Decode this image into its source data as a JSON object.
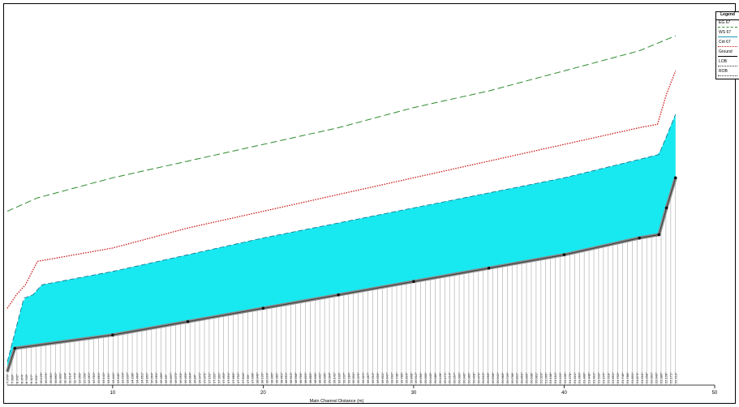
{
  "chart_data": {
    "type": "area",
    "title": "",
    "xlabel": "Main Channel Distance (m)",
    "ylabel": "",
    "xlim": [
      3,
      50
    ],
    "ylim": [
      6.5,
      17.8
    ],
    "x_ticks": [
      10,
      20,
      30,
      40,
      50
    ],
    "grid": false,
    "legend": {
      "position": "top-right",
      "title": "Legend",
      "entries": [
        "EG 67",
        "WS 67",
        "Crit 67",
        "Ground",
        "LOB",
        "ROB"
      ]
    },
    "series": [
      {
        "name": "EG 67",
        "color": "#2e8b2e",
        "style": "dashed",
        "x": [
          3,
          5,
          10,
          15,
          20,
          25,
          30,
          35,
          40,
          45,
          47.4
        ],
        "y": [
          11.7,
          12.1,
          12.7,
          13.2,
          13.7,
          14.2,
          14.8,
          15.3,
          15.9,
          16.5,
          16.95
        ]
      },
      {
        "name": "WS 67",
        "color": "#1a9ab0",
        "style": "solid",
        "x": [
          3,
          4.1,
          4.7,
          5.3,
          10,
          15,
          20,
          25,
          30,
          35,
          40,
          45,
          46.3,
          47.4
        ],
        "y": [
          7.2,
          9.1,
          9.2,
          9.5,
          9.9,
          10.4,
          10.9,
          11.35,
          11.8,
          12.25,
          12.7,
          13.25,
          13.4,
          14.6
        ]
      },
      {
        "name": "Crit 67",
        "color": "#cc1a1a",
        "style": "dotted",
        "x": [
          3,
          3.6,
          4.2,
          5.0,
          10,
          15,
          20,
          25,
          30,
          35,
          40,
          45,
          46.2,
          46.8,
          47.4
        ],
        "y": [
          8.8,
          9.2,
          9.5,
          10.2,
          10.6,
          11.2,
          11.7,
          12.2,
          12.7,
          13.2,
          13.7,
          14.2,
          14.3,
          15.2,
          15.9
        ]
      },
      {
        "name": "Ground",
        "color": "#222222",
        "style": "solid-markers",
        "x": [
          3,
          3.5,
          10,
          15,
          20,
          25,
          30,
          35,
          40,
          45,
          46.3,
          46.8,
          47.4
        ],
        "y": [
          6.9,
          7.6,
          8.0,
          8.4,
          8.8,
          9.2,
          9.6,
          10.0,
          10.4,
          10.9,
          11.0,
          11.8,
          12.7
        ]
      },
      {
        "name": "LOB",
        "color": "#555555",
        "style": "solid",
        "x": [],
        "y": []
      },
      {
        "name": "ROB",
        "color": "#555555",
        "style": "solid",
        "x": [],
        "y": []
      }
    ],
    "station_labels": [
      "7.270*",
      "7.583*",
      "8.242*",
      "8.374*",
      "8.743*",
      "9.117*",
      "9.231*",
      "10.129*",
      "10.279*",
      "10.581*",
      "10.862*",
      "11.081*",
      "11.284*",
      "11.513*",
      "11.779*",
      "12.059*",
      "12.233*",
      "12.461*",
      "12.781*",
      "12.861*",
      "13.141*",
      "13.211*",
      "13.441*",
      "13.645*",
      "13.724*",
      "13.937*",
      "14.238*",
      "14.464*",
      "14.651*",
      "14.862*",
      "15.064*",
      "15.281*",
      "15.466*",
      "15.65*",
      "15.837*",
      "16.073*",
      "16.253*",
      "16.453*",
      "16.664*",
      "16.86*",
      "16.972*",
      "17.070*",
      "17.152*",
      "17.292*",
      "17.392*",
      "17.493*",
      "17.591*",
      "17.683*",
      "17.752*",
      "17.844*",
      "17.90*",
      "17.998*",
      "18.049*",
      "18.129*",
      "18.224*",
      "18.305*",
      "18.382*",
      "18.461*",
      "18.551*",
      "18.613*",
      "18.698*",
      "18.759*",
      "18.822*",
      "18.883*",
      "18.936*",
      "18.992*",
      "19.039*",
      "19.094*",
      "19.141*",
      "19.193*",
      "19.237*",
      "19.284*",
      "19.331*",
      "19.379*",
      "19.421*",
      "19.467*",
      "19.513*",
      "19.559*",
      "19.601*",
      "19.647*",
      "19.692*",
      "19.738*",
      "19.780*",
      "19.824*",
      "19.868*",
      "19.912*",
      "19.956*",
      "20.000*",
      "20.043*",
      "20.086*",
      "20.128*",
      "20.171*",
      "20.214*",
      "20.257*",
      "20.300*",
      "20.342*",
      "20.385*",
      "20.428*",
      "20.470*",
      "20.513*",
      "20.556*",
      "20.598*",
      "20.641*",
      "20.683*",
      "20.726*",
      "20.768*",
      "20.811*",
      "20.853*",
      "20.896*",
      "20.938*",
      "20.981*",
      "21.023*",
      "21.066*",
      "21.108*",
      "21.151*",
      "21.193*",
      "21.236*",
      "21.278*",
      "21.321*",
      "21.363*",
      "21.406*",
      "21.448*",
      "21.491*",
      "21.533*",
      "21.576*",
      "21.618*",
      "21.661*",
      "21.703*",
      "21.746*",
      "21.788*",
      "21.831*",
      "21.873*",
      "21.916*",
      "21.958*",
      "22.001*",
      "22.043*",
      "22.086*",
      "22.128*",
      "22.171*",
      "22.213*"
    ]
  }
}
